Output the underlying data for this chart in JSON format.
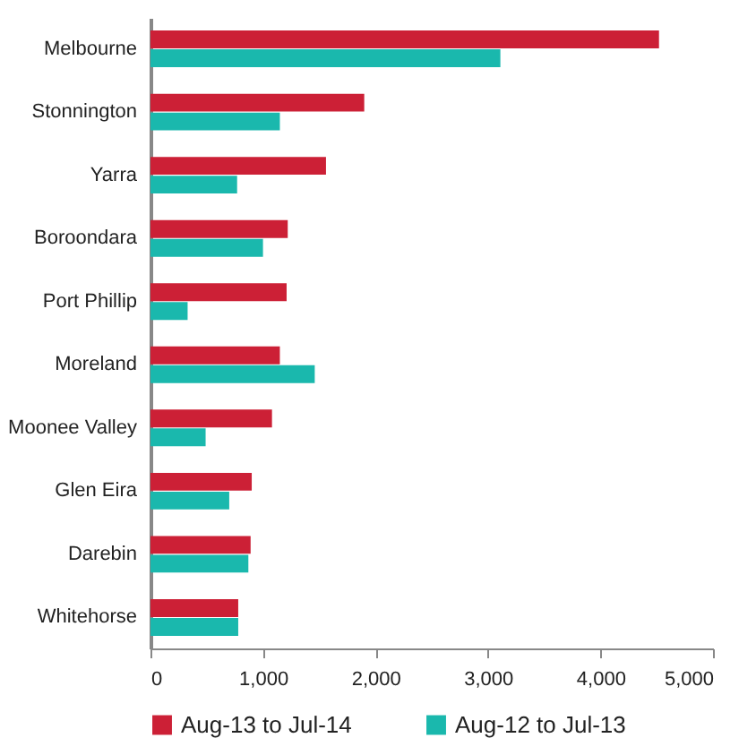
{
  "chart_data": {
    "type": "bar",
    "orientation": "horizontal",
    "categories": [
      "Melbourne",
      "Stonnington",
      "Yarra",
      "Boroondara",
      "Port Phillip",
      "Moreland",
      "Moonee Valley",
      "Glen Eira",
      "Darebin",
      "Whitehorse"
    ],
    "series": [
      {
        "name": "Aug-13 to Jul-14",
        "color": "#cc2036",
        "values": [
          4520,
          1900,
          1560,
          1220,
          1210,
          1150,
          1080,
          900,
          890,
          780
        ]
      },
      {
        "name": "Aug-12 to Jul-13",
        "color": "#1ab8ad",
        "values": [
          3110,
          1150,
          770,
          1000,
          330,
          1460,
          490,
          700,
          870,
          780
        ]
      }
    ],
    "xlim": [
      0,
      5000
    ],
    "xticks": [
      {
        "value": 0,
        "label": "0"
      },
      {
        "value": 1000,
        "label": "1,000"
      },
      {
        "value": 2000,
        "label": "2,000"
      },
      {
        "value": 3000,
        "label": "3,000"
      },
      {
        "value": 4000,
        "label": "4,000"
      },
      {
        "value": 5000,
        "label": "5,000"
      }
    ],
    "grid": false,
    "legend": "bottom"
  }
}
